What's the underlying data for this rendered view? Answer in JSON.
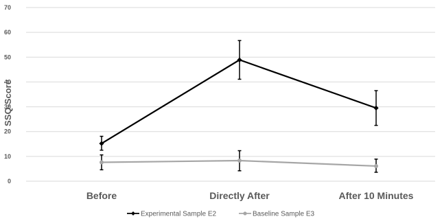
{
  "chart_data": {
    "type": "line",
    "categories": [
      "Before",
      "Directly After",
      "After 10 Minutes"
    ],
    "ylabel": "SSQ-Score",
    "ylim": [
      0,
      70
    ],
    "yticks": [
      0,
      10,
      20,
      30,
      40,
      50,
      60,
      70
    ],
    "grid": true,
    "legend_position": "bottom",
    "series": [
      {
        "name": "Experimental Sample E2",
        "color": "#000000",
        "marker": "diamond",
        "values": [
          15.2,
          48.9,
          29.5
        ],
        "error_low": [
          12.5,
          41.1,
          22.5
        ],
        "error_high": [
          18.1,
          56.7,
          36.5
        ]
      },
      {
        "name": "Baseline Sample E3",
        "color": "#a6a6a6",
        "marker": "circle",
        "values": [
          7.6,
          8.3,
          6.1
        ],
        "error_low": [
          4.6,
          4.2,
          3.6
        ],
        "error_high": [
          10.6,
          12.3,
          8.9
        ]
      }
    ]
  }
}
